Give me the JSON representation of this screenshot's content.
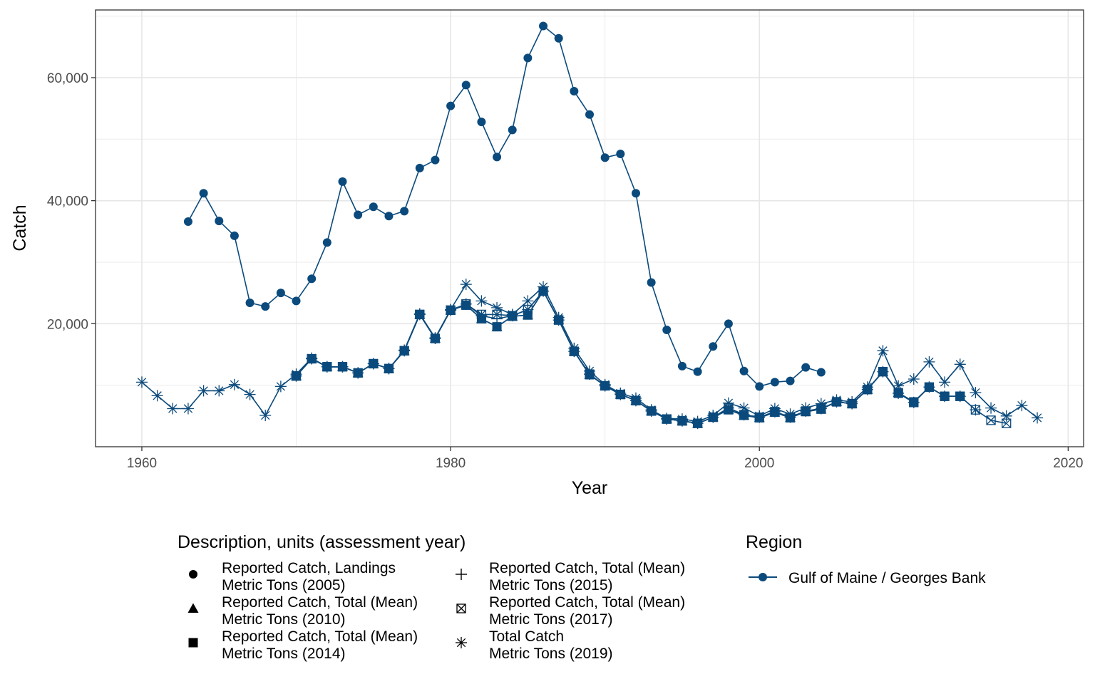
{
  "chart_data": {
    "type": "line",
    "xlabel": "Year",
    "ylabel": "Catch",
    "xlim": [
      1957,
      2021
    ],
    "ylim": [
      0,
      71000
    ],
    "xticks": [
      1960,
      1980,
      2000,
      2020
    ],
    "xtick_labels": [
      "1960",
      "1980",
      "2000",
      "2020"
    ],
    "yticks": [
      20000,
      40000,
      60000
    ],
    "ytick_labels": [
      "20,000",
      "40,000",
      "60,000"
    ],
    "grid": true,
    "line_color": "#0b4a7c",
    "legend_position": "bottom",
    "legend_title": "Description, units (assessment year)",
    "region_legend_title": "Region",
    "region": "Gulf of Maine / Georges Bank",
    "series": [
      {
        "name": "Reported Catch, Landings\nMetric Tons (2005)",
        "label_lines": [
          "Reported Catch, Landings",
          "Metric Tons (2005)"
        ],
        "marker": "circle",
        "x": [
          1963,
          1964,
          1965,
          1966,
          1967,
          1968,
          1969,
          1970,
          1971,
          1972,
          1973,
          1974,
          1975,
          1976,
          1977,
          1978,
          1979,
          1980,
          1981,
          1982,
          1983,
          1984,
          1985,
          1986,
          1987,
          1988,
          1989,
          1990,
          1991,
          1992,
          1993,
          1994,
          1995,
          1996,
          1997,
          1998,
          1999,
          2000,
          2001,
          2002,
          2003,
          2004
        ],
        "y": [
          36600,
          41200,
          36700,
          34300,
          23400,
          22800,
          25000,
          23700,
          27300,
          33200,
          43100,
          37700,
          39000,
          37500,
          38300,
          45300,
          46600,
          55400,
          58800,
          52800,
          47100,
          51500,
          63200,
          68400,
          66400,
          57800,
          54000,
          47000,
          47600,
          41200,
          26700,
          19000,
          13100,
          12200,
          16300,
          20000,
          12300,
          9800,
          10500,
          10700,
          12900,
          12100
        ]
      },
      {
        "name": "Reported Catch, Total (Mean)\nMetric Tons (2010)",
        "label_lines": [
          "Reported Catch, Total (Mean)",
          "Metric Tons (2010)"
        ],
        "marker": "triangle",
        "x": [
          1970,
          1971,
          1972,
          1973,
          1974,
          1975,
          1976,
          1977,
          1978,
          1979,
          1980,
          1981,
          1982,
          1983,
          1984,
          1985,
          1986,
          1987,
          1988,
          1989,
          1990,
          1991,
          1992,
          1993,
          1994,
          1995,
          1996,
          1997,
          1998,
          1999,
          2000,
          2001,
          2002,
          2003,
          2004,
          2005,
          2006,
          2007,
          2008,
          2009
        ],
        "y": [
          11500,
          14300,
          13000,
          13000,
          12000,
          13500,
          12700,
          15600,
          21500,
          17600,
          22200,
          23000,
          20800,
          19500,
          21200,
          21400,
          25300,
          20600,
          15500,
          11700,
          9900,
          8500,
          7500,
          5800,
          4500,
          4200,
          3800,
          4800,
          6000,
          5100,
          4700,
          5600,
          4700,
          5700,
          6100,
          7300,
          7000,
          9300,
          12200,
          8800
        ]
      },
      {
        "name": "Reported Catch, Total (Mean)\nMetric Tons (2014)",
        "label_lines": [
          "Reported Catch, Total (Mean)",
          "Metric Tons (2014)"
        ],
        "marker": "square",
        "x": [
          1970,
          1971,
          1972,
          1973,
          1974,
          1975,
          1976,
          1977,
          1978,
          1979,
          1980,
          1981,
          1982,
          1983,
          1984,
          1985,
          1986,
          1987,
          1988,
          1989,
          1990,
          1991,
          1992,
          1993,
          1994,
          1995,
          1996,
          1997,
          1998,
          1999,
          2000,
          2001,
          2002,
          2003,
          2004,
          2005,
          2006,
          2007,
          2008,
          2009,
          2010,
          2011,
          2012,
          2013
        ],
        "y": [
          11500,
          14300,
          13000,
          13000,
          12000,
          13500,
          12700,
          15600,
          21500,
          17600,
          22200,
          23000,
          20800,
          19500,
          21200,
          21400,
          25300,
          20600,
          15500,
          11700,
          9900,
          8500,
          7500,
          5800,
          4500,
          4200,
          3800,
          4800,
          6000,
          5100,
          4700,
          5600,
          4700,
          5700,
          6100,
          7300,
          7000,
          9300,
          12200,
          8800,
          7300,
          9700,
          8200,
          8200
        ]
      },
      {
        "name": "Reported Catch, Total (Mean)\nMetric Tons (2015)",
        "label_lines": [
          "Reported Catch, Total (Mean)",
          "Metric Tons (2015)"
        ],
        "marker": "plus",
        "x": [
          1970,
          1971,
          1972,
          1973,
          1974,
          1975,
          1976,
          1977,
          1978,
          1979,
          1980,
          1981,
          1982,
          1983,
          1984,
          1985,
          1986,
          1987,
          1988,
          1989,
          1990,
          1991,
          1992,
          1993,
          1994,
          1995,
          1996,
          1997,
          1998,
          1999,
          2000,
          2001,
          2002,
          2003,
          2004,
          2005,
          2006,
          2007,
          2008,
          2009,
          2010,
          2011,
          2012,
          2013,
          2014
        ],
        "y": [
          11500,
          14300,
          13000,
          13000,
          12000,
          13500,
          12700,
          15600,
          21500,
          17600,
          22200,
          23200,
          21300,
          20800,
          21300,
          22300,
          25300,
          20600,
          15500,
          11800,
          9900,
          8500,
          7500,
          5800,
          4500,
          4200,
          3800,
          4800,
          6300,
          5200,
          4800,
          5700,
          4800,
          5800,
          6200,
          7300,
          7000,
          9300,
          12200,
          8700,
          7200,
          9700,
          8200,
          8200,
          6000
        ]
      },
      {
        "name": "Reported Catch, Total (Mean)\nMetric Tons (2017)",
        "label_lines": [
          "Reported Catch, Total (Mean)",
          "Metric Tons (2017)"
        ],
        "marker": "boxx",
        "x": [
          1970,
          1971,
          1972,
          1973,
          1974,
          1975,
          1976,
          1977,
          1978,
          1979,
          1980,
          1981,
          1982,
          1983,
          1984,
          1985,
          1986,
          1987,
          1988,
          1989,
          1990,
          1991,
          1992,
          1993,
          1994,
          1995,
          1996,
          1997,
          1998,
          1999,
          2000,
          2001,
          2002,
          2003,
          2004,
          2005,
          2006,
          2007,
          2008,
          2009,
          2010,
          2011,
          2012,
          2013,
          2014,
          2015,
          2016
        ],
        "y": [
          11500,
          14300,
          13000,
          13000,
          12000,
          13500,
          12700,
          15600,
          21500,
          17600,
          22200,
          23200,
          21500,
          21500,
          21300,
          22300,
          25300,
          20600,
          15500,
          11800,
          9900,
          8500,
          7500,
          5800,
          4500,
          4200,
          3800,
          4800,
          6300,
          5200,
          4800,
          5700,
          4800,
          5800,
          6200,
          7300,
          7000,
          9300,
          12200,
          8700,
          7200,
          9700,
          8200,
          8200,
          6000,
          4300,
          3800
        ]
      },
      {
        "name": "Total Catch\nMetric Tons (2019)",
        "label_lines": [
          "Total Catch",
          "Metric Tons (2019)"
        ],
        "marker": "star",
        "x": [
          1960,
          1961,
          1962,
          1963,
          1964,
          1965,
          1966,
          1967,
          1968,
          1969,
          1970,
          1971,
          1972,
          1973,
          1974,
          1975,
          1976,
          1977,
          1978,
          1979,
          1980,
          1981,
          1982,
          1983,
          1984,
          1985,
          1986,
          1987,
          1988,
          1989,
          1990,
          1991,
          1992,
          1993,
          1994,
          1995,
          1996,
          1997,
          1998,
          1999,
          2000,
          2001,
          2002,
          2003,
          2004,
          2005,
          2006,
          2007,
          2008,
          2009,
          2010,
          2011,
          2012,
          2013,
          2014,
          2015,
          2016,
          2017,
          2018
        ],
        "y": [
          10500,
          8300,
          6200,
          6200,
          9100,
          9100,
          10100,
          8500,
          5100,
          9800,
          11800,
          14400,
          13000,
          13000,
          12000,
          13500,
          12700,
          15700,
          21600,
          17700,
          22300,
          26400,
          23700,
          22600,
          21500,
          23700,
          26000,
          21000,
          16000,
          12300,
          10100,
          8700,
          7900,
          6000,
          4600,
          4500,
          4100,
          5100,
          7100,
          6300,
          5000,
          6200,
          5300,
          6300,
          7000,
          7600,
          7300,
          9700,
          15600,
          9900,
          11000,
          13800,
          10500,
          13400,
          8800,
          6300,
          5000,
          6700,
          4700
        ]
      }
    ]
  }
}
